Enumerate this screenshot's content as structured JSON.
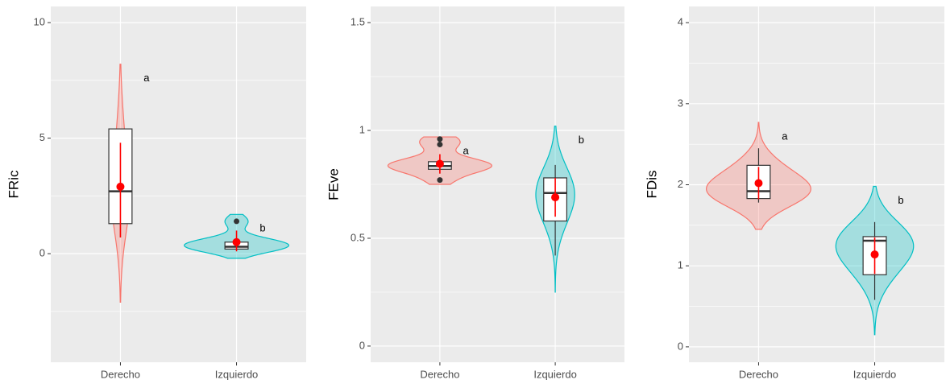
{
  "chart_data": [
    {
      "type": "violin",
      "y_label": "FRic",
      "ylim": [
        -4.7,
        10.7
      ],
      "yticks": [
        0,
        5,
        10
      ],
      "grid": true,
      "groups": [
        {
          "name": "Derecho",
          "color": "#F8766D",
          "violin_range": [
            -2.1,
            8.2
          ],
          "box": {
            "whisker_low": 0.7,
            "q1": 1.3,
            "median": 2.7,
            "q3": 5.4,
            "whisker_high": 5.4
          },
          "outliers": [],
          "mean": 2.9,
          "mean_range": [
            0.7,
            4.8
          ],
          "letter": "a"
        },
        {
          "name": "Izquierdo",
          "color": "#00BFC4",
          "violin_range": [
            -0.2,
            1.7
          ],
          "box": {
            "whisker_low": 0.2,
            "q1": 0.2,
            "median": 0.3,
            "q3": 0.5,
            "whisker_high": 0.5
          },
          "outliers": [
            1.4
          ],
          "mean": 0.5,
          "mean_range": [
            0.1,
            1.0
          ],
          "letter": "b"
        }
      ]
    },
    {
      "type": "violin",
      "y_label": "FEve",
      "ylim": [
        -0.075,
        1.575
      ],
      "yticks": [
        0.0,
        0.5,
        1.0,
        1.5
      ],
      "grid": true,
      "groups": [
        {
          "name": "Derecho",
          "color": "#F8766D",
          "violin_range": [
            0.75,
            0.97
          ],
          "box": {
            "whisker_low": 0.8,
            "q1": 0.82,
            "median": 0.835,
            "q3": 0.855,
            "whisker_high": 0.87
          },
          "outliers": [
            0.96,
            0.935,
            0.77
          ],
          "mean": 0.845,
          "mean_range": [
            0.8,
            0.89
          ],
          "letter": "a"
        },
        {
          "name": "Izquierdo",
          "color": "#00BFC4",
          "violin_range": [
            0.25,
            1.02
          ],
          "box": {
            "whisker_low": 0.42,
            "q1": 0.58,
            "median": 0.71,
            "q3": 0.78,
            "whisker_high": 0.84
          },
          "outliers": [],
          "mean": 0.69,
          "mean_range": [
            0.6,
            0.78
          ],
          "letter": "b"
        }
      ]
    },
    {
      "type": "violin",
      "y_label": "FDis",
      "ylim": [
        -0.19,
        4.2
      ],
      "yticks": [
        0,
        1,
        2,
        3,
        4
      ],
      "grid": true,
      "groups": [
        {
          "name": "Derecho",
          "color": "#F8766D",
          "violin_range": [
            1.45,
            2.77
          ],
          "box": {
            "whisker_low": 1.78,
            "q1": 1.83,
            "median": 1.92,
            "q3": 2.24,
            "whisker_high": 2.45
          },
          "outliers": [],
          "mean": 2.02,
          "mean_range": [
            1.82,
            2.22
          ],
          "letter": "a"
        },
        {
          "name": "Izquierdo",
          "color": "#00BFC4",
          "violin_range": [
            0.15,
            1.98
          ],
          "box": {
            "whisker_low": 0.58,
            "q1": 0.89,
            "median": 1.31,
            "q3": 1.36,
            "whisker_high": 1.54
          },
          "outliers": [],
          "mean": 1.14,
          "mean_range": [
            0.9,
            1.35
          ],
          "letter": "b"
        }
      ]
    }
  ]
}
